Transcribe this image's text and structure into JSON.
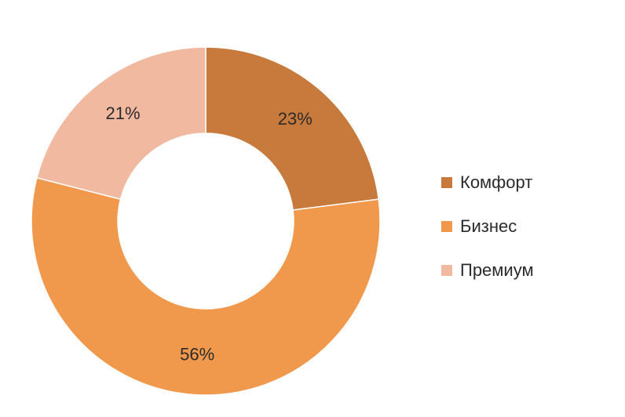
{
  "chart_data": {
    "type": "pie",
    "donut": true,
    "categories": [
      "Комфорт",
      "Бизнес",
      "Премиум"
    ],
    "values": [
      23,
      56,
      21
    ],
    "data_labels": [
      "23%",
      "56%",
      "21%"
    ],
    "colors": [
      "#C77A3C",
      "#F0994C",
      "#F2B9A1"
    ],
    "legend_position": "right",
    "title": ""
  }
}
